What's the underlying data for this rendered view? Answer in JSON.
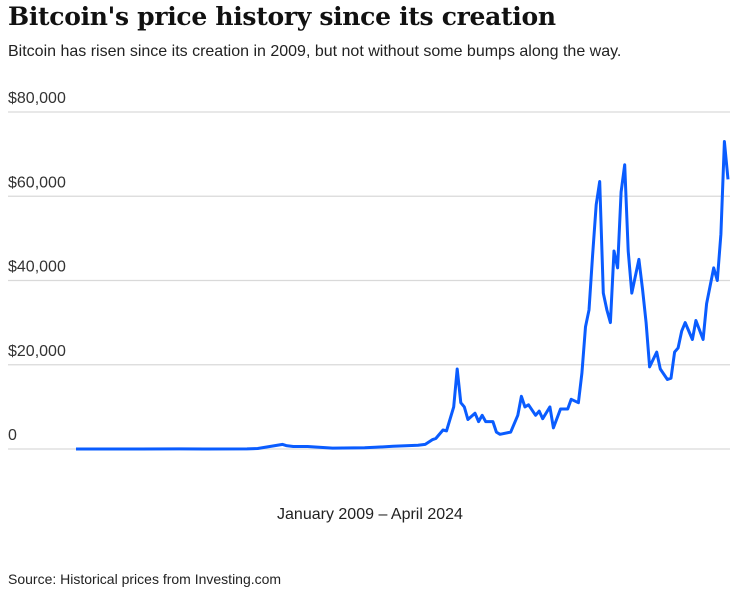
{
  "title": "Bitcoin's price history since its creation",
  "subtitle": "Bitcoin has risen since its creation in 2009, but not without some bumps along the way.",
  "source": "Source: Historical prices from Investing.com",
  "chart_data": {
    "type": "line",
    "title": "Bitcoin's price history since its creation",
    "xlabel": "January 2009 – April 2024",
    "ylabel": "",
    "xlim": [
      "2009-01",
      "2024-04"
    ],
    "ylim": [
      0,
      80000
    ],
    "yticks": [
      0,
      20000,
      40000,
      60000,
      80000
    ],
    "ytick_labels": [
      "0",
      "$20,000",
      "$40,000",
      "$60,000",
      "$80,000"
    ],
    "grid": "horizontal",
    "color": "#0a5cff",
    "series": [
      {
        "x": [
          "2009-01",
          "2010-07",
          "2011-06",
          "2012-01",
          "2013-01",
          "2013-04",
          "2013-11",
          "2013-12",
          "2014-02",
          "2014-06",
          "2015-01",
          "2015-10",
          "2016-01",
          "2016-06",
          "2017-01",
          "2017-03",
          "2017-05",
          "2017-06",
          "2017-08",
          "2017-09",
          "2017-11",
          "2017-12",
          "2018-01",
          "2018-02",
          "2018-03",
          "2018-05",
          "2018-06",
          "2018-07",
          "2018-08",
          "2018-10",
          "2018-11",
          "2018-12",
          "2019-03",
          "2019-05",
          "2019-06",
          "2019-07",
          "2019-08",
          "2019-10",
          "2019-11",
          "2019-12",
          "2020-02",
          "2020-03",
          "2020-05",
          "2020-07",
          "2020-08",
          "2020-10",
          "2020-11",
          "2020-12",
          "2021-01",
          "2021-02",
          "2021-03",
          "2021-04",
          "2021-05",
          "2021-06",
          "2021-07",
          "2021-08",
          "2021-09",
          "2021-10",
          "2021-11",
          "2021-12",
          "2022-01",
          "2022-03",
          "2022-04",
          "2022-05",
          "2022-06",
          "2022-08",
          "2022-09",
          "2022-11",
          "2022-12",
          "2023-01",
          "2023-02",
          "2023-03",
          "2023-04",
          "2023-06",
          "2023-07",
          "2023-09",
          "2023-10",
          "2023-12",
          "2024-01",
          "2024-02",
          "2024-03",
          "2024-04"
        ],
        "y": [
          0,
          0.07,
          20,
          6,
          13,
          130,
          1100,
          800,
          600,
          600,
          220,
          300,
          400,
          650,
          900,
          1100,
          2200,
          2500,
          4500,
          4300,
          10000,
          19000,
          11000,
          10000,
          7000,
          8500,
          6500,
          8000,
          6500,
          6500,
          4000,
          3500,
          4000,
          8000,
          12500,
          10000,
          10500,
          8000,
          9000,
          7200,
          10000,
          5000,
          9500,
          9500,
          11800,
          11000,
          18000,
          29000,
          33000,
          46000,
          58000,
          63500,
          37000,
          33000,
          30000,
          47000,
          43000,
          61000,
          67500,
          47000,
          37000,
          45000,
          38000,
          30000,
          19500,
          23000,
          19000,
          16500,
          16800,
          23000,
          24000,
          28000,
          30000,
          26000,
          30500,
          26000,
          34500,
          43000,
          40000,
          51000,
          73000,
          64000
        ]
      }
    ]
  }
}
